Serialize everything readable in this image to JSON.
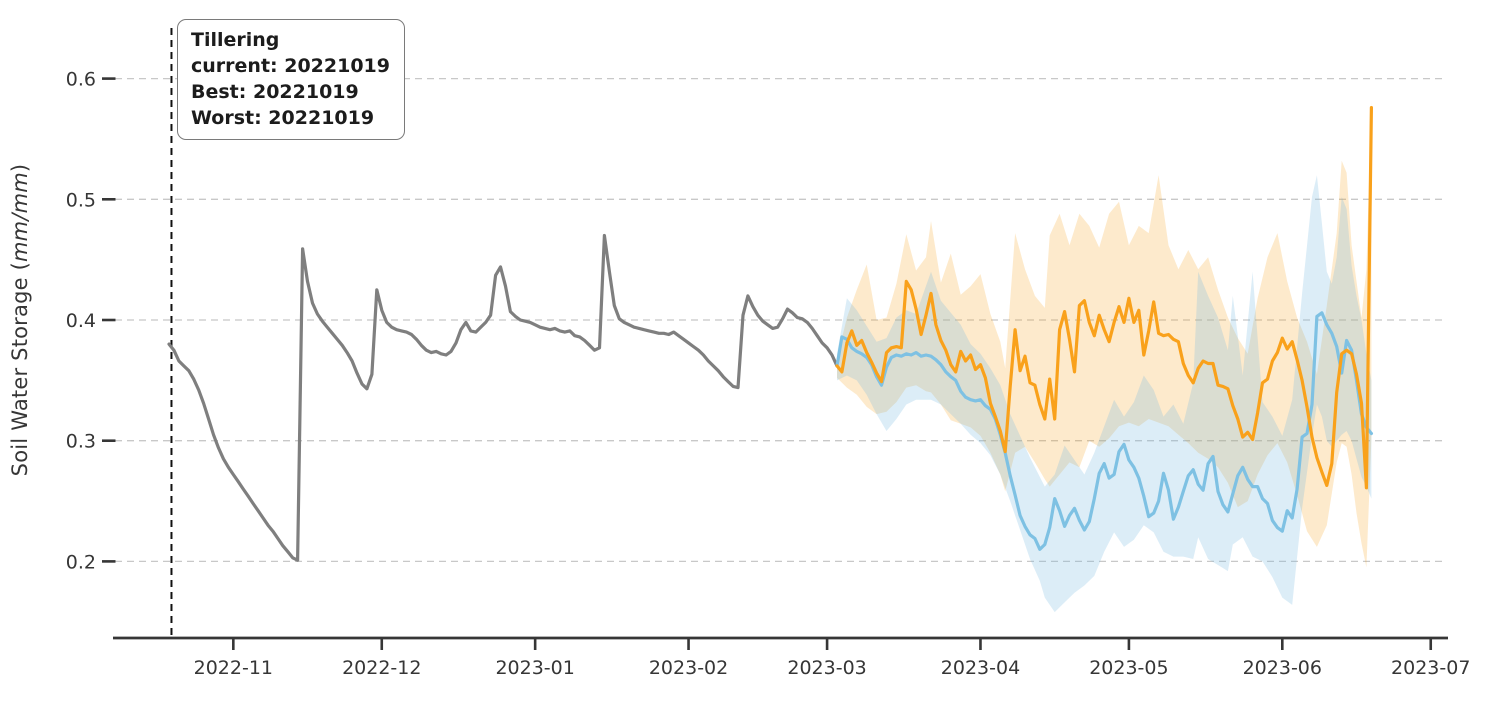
{
  "figure": {
    "annotation": {
      "title": "Tillering",
      "lines": [
        "current: 20221019",
        "Best: 20221019",
        "Worst: 20221019"
      ]
    },
    "ylabel": {
      "prefix": "Soil Water Storage (",
      "italic": "mm/mm",
      "suffix": ")"
    }
  },
  "chart_data": {
    "type": "line",
    "title": "",
    "xlabel": "",
    "ylabel": "Soil Water Storage (mm/mm)",
    "x_start_date": "2022-10-19",
    "x_unit": "days since 2022-10-19",
    "ylim": [
      0.14,
      0.66
    ],
    "grid": true,
    "legend_position": "none",
    "colors": {
      "observed": "#7f7f7f",
      "forecast_orange": "#F9A11B",
      "forecast_orange_band": "rgba(247,159,23,0.22)",
      "forecast_skyblue": "#7EC1E3",
      "forecast_skyblue_band": "rgba(116,184,224,0.25)",
      "gridline": "#c8c8c8",
      "axis": "#363636",
      "tick_text": "#363636",
      "vline": "#111111"
    },
    "y_ticks": [
      {
        "label": "0.6",
        "v": 0.6
      },
      {
        "label": "0.5",
        "v": 0.5
      },
      {
        "label": "0.4",
        "v": 0.4
      },
      {
        "label": "0.3",
        "v": 0.3
      },
      {
        "label": "0.2",
        "v": 0.2
      }
    ],
    "x_ticks": [
      {
        "label": "2022-11",
        "d": 13
      },
      {
        "label": "2022-12",
        "d": 43
      },
      {
        "label": "2023-01",
        "d": 74
      },
      {
        "label": "2023-02",
        "d": 105
      },
      {
        "label": "2023-03",
        "d": 133
      },
      {
        "label": "2023-04",
        "d": 164
      },
      {
        "label": "2023-05",
        "d": 194
      },
      {
        "label": "2023-06",
        "d": 225
      },
      {
        "label": "2023-07",
        "d": 255
      }
    ],
    "vline": {
      "d": 0.5,
      "style": "dashed"
    },
    "series": [
      {
        "name": "observed",
        "color_key": "observed",
        "start_d": 0,
        "step_days": 1,
        "values": [
          0.38,
          0.375,
          0.366,
          0.362,
          0.358,
          0.351,
          0.342,
          0.331,
          0.318,
          0.305,
          0.294,
          0.285,
          0.278,
          0.272,
          0.266,
          0.26,
          0.254,
          0.248,
          0.242,
          0.236,
          0.23,
          0.225,
          0.219,
          0.213,
          0.208,
          0.203,
          0.201,
          0.459,
          0.432,
          0.414,
          0.405,
          0.399,
          0.394,
          0.389,
          0.384,
          0.379,
          0.373,
          0.366,
          0.356,
          0.347,
          0.343,
          0.355,
          0.425,
          0.408,
          0.398,
          0.394,
          0.392,
          0.391,
          0.39,
          0.388,
          0.384,
          0.379,
          0.375,
          0.373,
          0.374,
          0.372,
          0.371,
          0.374,
          0.381,
          0.392,
          0.398,
          0.391,
          0.39,
          0.394,
          0.398,
          0.404,
          0.437,
          0.444,
          0.428,
          0.407,
          0.403,
          0.4,
          0.399,
          0.398,
          0.396,
          0.394,
          0.393,
          0.392,
          0.393,
          0.391,
          0.39,
          0.391,
          0.387,
          0.386,
          0.383,
          0.379,
          0.375,
          0.377,
          0.47,
          0.44,
          0.412,
          0.401,
          0.398,
          0.396,
          0.394,
          0.393,
          0.392,
          0.391,
          0.39,
          0.389,
          0.389,
          0.388,
          0.39,
          0.387,
          0.384,
          0.381,
          0.378,
          0.375,
          0.371,
          0.366,
          0.362,
          0.358,
          0.353,
          0.349,
          0.345,
          0.344,
          0.404,
          0.42,
          0.411,
          0.404,
          0.399,
          0.396,
          0.393,
          0.394,
          0.401,
          0.409,
          0.406,
          0.402,
          0.401,
          0.398,
          0.393,
          0.387,
          0.381,
          0.377,
          0.371,
          0.362
        ]
      },
      {
        "name": "forecast-orange",
        "color_key": "forecast_orange",
        "start_d": 135,
        "step_days": 1,
        "values": [
          0.362,
          0.357,
          0.381,
          0.391,
          0.379,
          0.383,
          0.373,
          0.365,
          0.356,
          0.349,
          0.373,
          0.377,
          0.378,
          0.377,
          0.432,
          0.425,
          0.409,
          0.388,
          0.404,
          0.422,
          0.396,
          0.383,
          0.375,
          0.363,
          0.357,
          0.374,
          0.366,
          0.371,
          0.359,
          0.363,
          0.352,
          0.331,
          0.32,
          0.308,
          0.291,
          0.345,
          0.392,
          0.358,
          0.37,
          0.348,
          0.346,
          0.33,
          0.318,
          0.351,
          0.318,
          0.392,
          0.407,
          0.384,
          0.357,
          0.412,
          0.416,
          0.398,
          0.387,
          0.404,
          0.392,
          0.382,
          0.398,
          0.411,
          0.398,
          0.418,
          0.398,
          0.408,
          0.371,
          0.391,
          0.415,
          0.389,
          0.387,
          0.388,
          0.384,
          0.382,
          0.364,
          0.354,
          0.348,
          0.36,
          0.366,
          0.364,
          0.364,
          0.346,
          0.345,
          0.343,
          0.329,
          0.318,
          0.303,
          0.307,
          0.301,
          0.323,
          0.348,
          0.351,
          0.366,
          0.373,
          0.385,
          0.376,
          0.382,
          0.367,
          0.35,
          0.328,
          0.303,
          0.286,
          0.274,
          0.263,
          0.281,
          0.34,
          0.372,
          0.375,
          0.372,
          0.355,
          0.331,
          0.261,
          0.576
        ],
        "band_color_key": "forecast_orange_band",
        "band": [
          [
            135,
            0.352,
            0.368
          ],
          [
            137,
            0.344,
            0.402
          ],
          [
            139,
            0.338,
            0.425
          ],
          [
            141,
            0.328,
            0.446
          ],
          [
            143,
            0.322,
            0.4
          ],
          [
            145,
            0.324,
            0.402
          ],
          [
            147,
            0.332,
            0.43
          ],
          [
            149,
            0.344,
            0.471
          ],
          [
            151,
            0.346,
            0.441
          ],
          [
            153,
            0.341,
            0.452
          ],
          [
            154,
            0.34,
            0.482
          ],
          [
            156,
            0.33,
            0.431
          ],
          [
            158,
            0.317,
            0.455
          ],
          [
            160,
            0.314,
            0.421
          ],
          [
            162,
            0.311,
            0.428
          ],
          [
            164,
            0.304,
            0.438
          ],
          [
            166,
            0.29,
            0.405
          ],
          [
            168,
            0.272,
            0.382
          ],
          [
            169,
            0.258,
            0.36
          ],
          [
            171,
            0.29,
            0.472
          ],
          [
            173,
            0.295,
            0.442
          ],
          [
            175,
            0.282,
            0.42
          ],
          [
            177,
            0.268,
            0.41
          ],
          [
            178,
            0.262,
            0.47
          ],
          [
            180,
            0.272,
            0.488
          ],
          [
            182,
            0.282,
            0.462
          ],
          [
            184,
            0.278,
            0.488
          ],
          [
            186,
            0.3,
            0.478
          ],
          [
            188,
            0.295,
            0.46
          ],
          [
            190,
            0.302,
            0.488
          ],
          [
            192,
            0.312,
            0.498
          ],
          [
            194,
            0.315,
            0.462
          ],
          [
            196,
            0.312,
            0.478
          ],
          [
            198,
            0.318,
            0.472
          ],
          [
            200,
            0.315,
            0.52
          ],
          [
            202,
            0.312,
            0.462
          ],
          [
            204,
            0.305,
            0.442
          ],
          [
            206,
            0.298,
            0.458
          ],
          [
            208,
            0.29,
            0.442
          ],
          [
            210,
            0.285,
            0.452
          ],
          [
            212,
            0.278,
            0.425
          ],
          [
            214,
            0.265,
            0.402
          ],
          [
            216,
            0.245,
            0.385
          ],
          [
            218,
            0.25,
            0.372
          ],
          [
            220,
            0.272,
            0.418
          ],
          [
            222,
            0.288,
            0.452
          ],
          [
            224,
            0.298,
            0.472
          ],
          [
            226,
            0.282,
            0.432
          ],
          [
            228,
            0.255,
            0.402
          ],
          [
            230,
            0.225,
            0.382
          ],
          [
            232,
            0.212,
            0.355
          ],
          [
            234,
            0.23,
            0.412
          ],
          [
            236,
            0.282,
            0.472
          ],
          [
            237,
            0.298,
            0.532
          ],
          [
            238,
            0.295,
            0.522
          ],
          [
            239,
            0.272,
            0.462
          ],
          [
            240,
            0.24,
            0.432
          ],
          [
            241,
            0.215,
            0.402
          ],
          [
            242,
            0.195,
            0.442
          ],
          [
            243,
            0.302,
            0.582
          ]
        ]
      },
      {
        "name": "forecast-skyblue",
        "color_key": "forecast_skyblue",
        "start_d": 135,
        "step_days": 1,
        "values": [
          0.362,
          0.386,
          0.384,
          0.377,
          0.374,
          0.372,
          0.369,
          0.363,
          0.353,
          0.346,
          0.361,
          0.369,
          0.371,
          0.37,
          0.372,
          0.371,
          0.373,
          0.37,
          0.371,
          0.37,
          0.367,
          0.363,
          0.357,
          0.353,
          0.35,
          0.341,
          0.336,
          0.334,
          0.333,
          0.334,
          0.329,
          0.326,
          0.318,
          0.305,
          0.29,
          0.271,
          0.255,
          0.238,
          0.229,
          0.222,
          0.219,
          0.21,
          0.214,
          0.228,
          0.252,
          0.242,
          0.229,
          0.238,
          0.244,
          0.234,
          0.226,
          0.233,
          0.252,
          0.273,
          0.281,
          0.269,
          0.272,
          0.291,
          0.297,
          0.284,
          0.278,
          0.269,
          0.254,
          0.237,
          0.24,
          0.25,
          0.273,
          0.259,
          0.235,
          0.245,
          0.258,
          0.271,
          0.276,
          0.264,
          0.259,
          0.281,
          0.287,
          0.258,
          0.247,
          0.241,
          0.256,
          0.271,
          0.278,
          0.268,
          0.262,
          0.262,
          0.252,
          0.248,
          0.234,
          0.228,
          0.225,
          0.242,
          0.236,
          0.26,
          0.303,
          0.306,
          0.33,
          0.403,
          0.406,
          0.396,
          0.389,
          0.378,
          0.356,
          0.383,
          0.375,
          0.35,
          0.322,
          0.311,
          0.306
        ],
        "band_color_key": "forecast_skyblue_band",
        "band": [
          [
            135,
            0.35,
            0.372
          ],
          [
            137,
            0.354,
            0.418
          ],
          [
            139,
            0.35,
            0.408
          ],
          [
            141,
            0.338,
            0.395
          ],
          [
            143,
            0.322,
            0.382
          ],
          [
            145,
            0.308,
            0.385
          ],
          [
            147,
            0.318,
            0.402
          ],
          [
            149,
            0.33,
            0.408
          ],
          [
            151,
            0.334,
            0.405
          ],
          [
            154,
            0.334,
            0.44
          ],
          [
            156,
            0.33,
            0.416
          ],
          [
            158,
            0.322,
            0.406
          ],
          [
            160,
            0.314,
            0.396
          ],
          [
            162,
            0.305,
            0.38
          ],
          [
            164,
            0.298,
            0.372
          ],
          [
            166,
            0.288,
            0.36
          ],
          [
            168,
            0.272,
            0.346
          ],
          [
            170,
            0.25,
            0.322
          ],
          [
            172,
            0.226,
            0.304
          ],
          [
            174,
            0.202,
            0.286
          ],
          [
            176,
            0.184,
            0.27
          ],
          [
            177,
            0.17,
            0.262
          ],
          [
            179,
            0.158,
            0.272
          ],
          [
            181,
            0.166,
            0.296
          ],
          [
            183,
            0.174,
            0.284
          ],
          [
            185,
            0.18,
            0.272
          ],
          [
            187,
            0.188,
            0.29
          ],
          [
            189,
            0.208,
            0.312
          ],
          [
            191,
            0.224,
            0.334
          ],
          [
            193,
            0.212,
            0.32
          ],
          [
            195,
            0.218,
            0.332
          ],
          [
            197,
            0.23,
            0.354
          ],
          [
            199,
            0.224,
            0.342
          ],
          [
            201,
            0.208,
            0.32
          ],
          [
            203,
            0.204,
            0.33
          ],
          [
            205,
            0.204,
            0.314
          ],
          [
            207,
            0.202,
            0.348
          ],
          [
            208,
            0.22,
            0.44
          ],
          [
            210,
            0.202,
            0.42
          ],
          [
            212,
            0.197,
            0.402
          ],
          [
            214,
            0.192,
            0.375
          ],
          [
            215,
            0.214,
            0.42
          ],
          [
            217,
            0.22,
            0.354
          ],
          [
            219,
            0.204,
            0.44
          ],
          [
            221,
            0.2,
            0.332
          ],
          [
            223,
            0.187,
            0.32
          ],
          [
            225,
            0.17,
            0.304
          ],
          [
            227,
            0.164,
            0.334
          ],
          [
            229,
            0.244,
            0.422
          ],
          [
            231,
            0.304,
            0.502
          ],
          [
            232,
            0.33,
            0.52
          ],
          [
            233,
            0.32,
            0.48
          ],
          [
            234,
            0.3,
            0.44
          ],
          [
            235,
            0.295,
            0.43
          ],
          [
            236,
            0.3,
            0.452
          ],
          [
            237,
            0.305,
            0.502
          ],
          [
            238,
            0.308,
            0.492
          ],
          [
            239,
            0.3,
            0.445
          ],
          [
            240,
            0.285,
            0.42
          ],
          [
            241,
            0.27,
            0.4
          ],
          [
            242,
            0.262,
            0.372
          ],
          [
            243,
            0.252,
            0.35
          ]
        ]
      }
    ]
  }
}
